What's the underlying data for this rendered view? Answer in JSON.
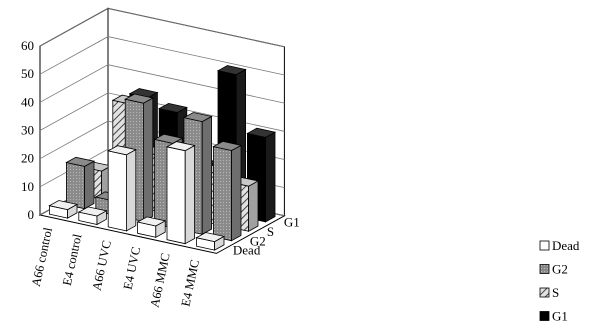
{
  "chart_data": {
    "type": "bar",
    "subtype": "3d-grouped-bar",
    "title": "",
    "categories": [
      "A66 control",
      "E4 control",
      "A66 UVC",
      "E4 UVC",
      "A66 MMC",
      "E4 MMC"
    ],
    "series": [
      {
        "name": "Dead",
        "values": [
          3,
          3,
          27,
          4,
          33,
          3
        ]
      },
      {
        "name": "G2",
        "values": [
          15,
          5,
          42,
          30,
          40,
          32
        ]
      },
      {
        "name": "S",
        "values": [
          10,
          36,
          20,
          10,
          18,
          16
        ]
      },
      {
        "name": "G1",
        "values": [
          0,
          35,
          32,
          15,
          50,
          30
        ]
      }
    ],
    "yticks": [
      "0",
      "10",
      "20",
      "30",
      "40",
      "50",
      "60"
    ],
    "ylim": [
      0,
      60
    ],
    "grid": true,
    "legend_position": "bottom-right",
    "colors": {
      "Dead": "#ffffff",
      "G2": "#8a8a8a",
      "S": "#c8c8c8",
      "G1": "#000000",
      "wall": "#ffffff",
      "floor": "#ffffff"
    },
    "patterns": {
      "Dead": "solid",
      "G2": "dotted",
      "S": "diagonal-hatch",
      "G1": "solid"
    }
  }
}
